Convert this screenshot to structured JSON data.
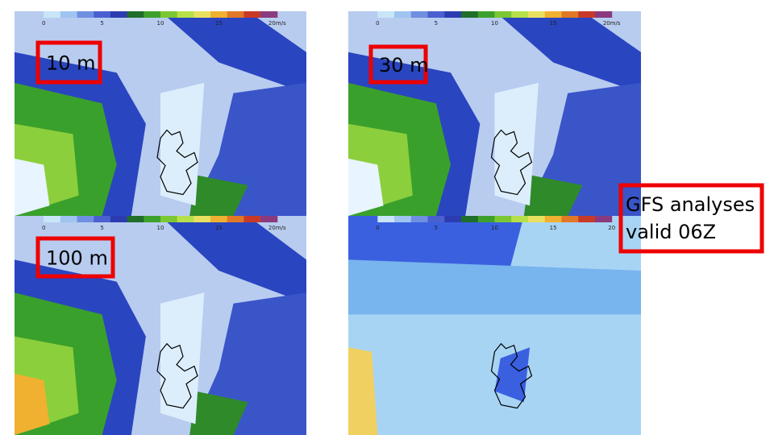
{
  "panels": [
    {
      "label": "10 m",
      "scale": [
        "0",
        "5",
        "10",
        "15",
        "20m/s"
      ]
    },
    {
      "label": "30 m",
      "scale": [
        "0",
        "5",
        "10",
        "15",
        "20m/s"
      ]
    },
    {
      "label": "100 m",
      "scale": [
        "0",
        "5",
        "10",
        "15",
        "20m/s"
      ]
    },
    {
      "scale": [
        "0",
        "5",
        "10",
        "15",
        "20"
      ]
    }
  ],
  "caption": {
    "lines": [
      "GFS analyses",
      "valid 06Z"
    ]
  }
}
